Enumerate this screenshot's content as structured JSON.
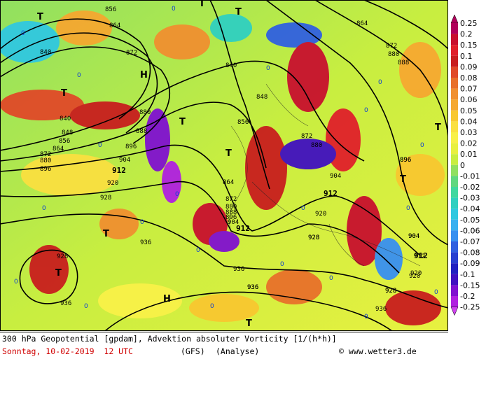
{
  "caption": {
    "title": "300 hPa Geopotential [gpdam], Advektion absoluter Vorticity [1/(h*h)]",
    "date": "Sonntag, 10-02-2019  12 UTC",
    "model": "(GFS)",
    "analysis": "(Analyse)",
    "copyright": "© www.wetter3.de"
  },
  "legend": {
    "values": [
      "0.25",
      "0.2",
      "0.15",
      "0.1",
      "0.09",
      "0.08",
      "0.07",
      "0.06",
      "0.05",
      "0.04",
      "0.03",
      "0.02",
      "0.01",
      "0",
      "-0.01",
      "-0.02",
      "-0.03",
      "-0.04",
      "-0.05",
      "-0.06",
      "-0.07",
      "-0.08",
      "-0.09",
      "-0.1",
      "-0.15",
      "-0.2",
      "-0.25"
    ],
    "colors": [
      "#b0005a",
      "#c8102e",
      "#e0202a",
      "#c81e1e",
      "#e04a28",
      "#e8702a",
      "#f09030",
      "#f5a830",
      "#f8c830",
      "#fae040",
      "#f8f048",
      "#e8f040",
      "#c8ee40",
      "#90e060",
      "#60d880",
      "#40d8a0",
      "#30d0c0",
      "#30c8e0",
      "#38b0f0",
      "#3890f0",
      "#3060e0",
      "#2840d0",
      "#2020c0",
      "#4010c0",
      "#8010d0",
      "#b020e0",
      "#d040f0"
    ]
  },
  "map": {
    "contour_labels": [
      "856",
      "864",
      "840",
      "872",
      "840",
      "864",
      "872",
      "880",
      "888",
      "848",
      "840",
      "848",
      "856",
      "864",
      "872",
      "880",
      "896",
      "880",
      "888",
      "896",
      "904",
      "912",
      "920",
      "928",
      "856",
      "864",
      "872",
      "880",
      "888",
      "896",
      "904",
      "912",
      "904",
      "912",
      "920",
      "928",
      "872",
      "880",
      "896",
      "912",
      "904",
      "920",
      "936",
      "928",
      "936",
      "936",
      "928",
      "936",
      "920",
      "928",
      "912",
      "904",
      "896",
      "928",
      "936",
      "936"
    ],
    "pressure_marks": [
      "T",
      "T",
      "T",
      "T",
      "H",
      "T",
      "T",
      "T",
      "T",
      "T",
      "T",
      "T",
      "T",
      "H",
      "T"
    ],
    "minima_zeros": "0"
  }
}
